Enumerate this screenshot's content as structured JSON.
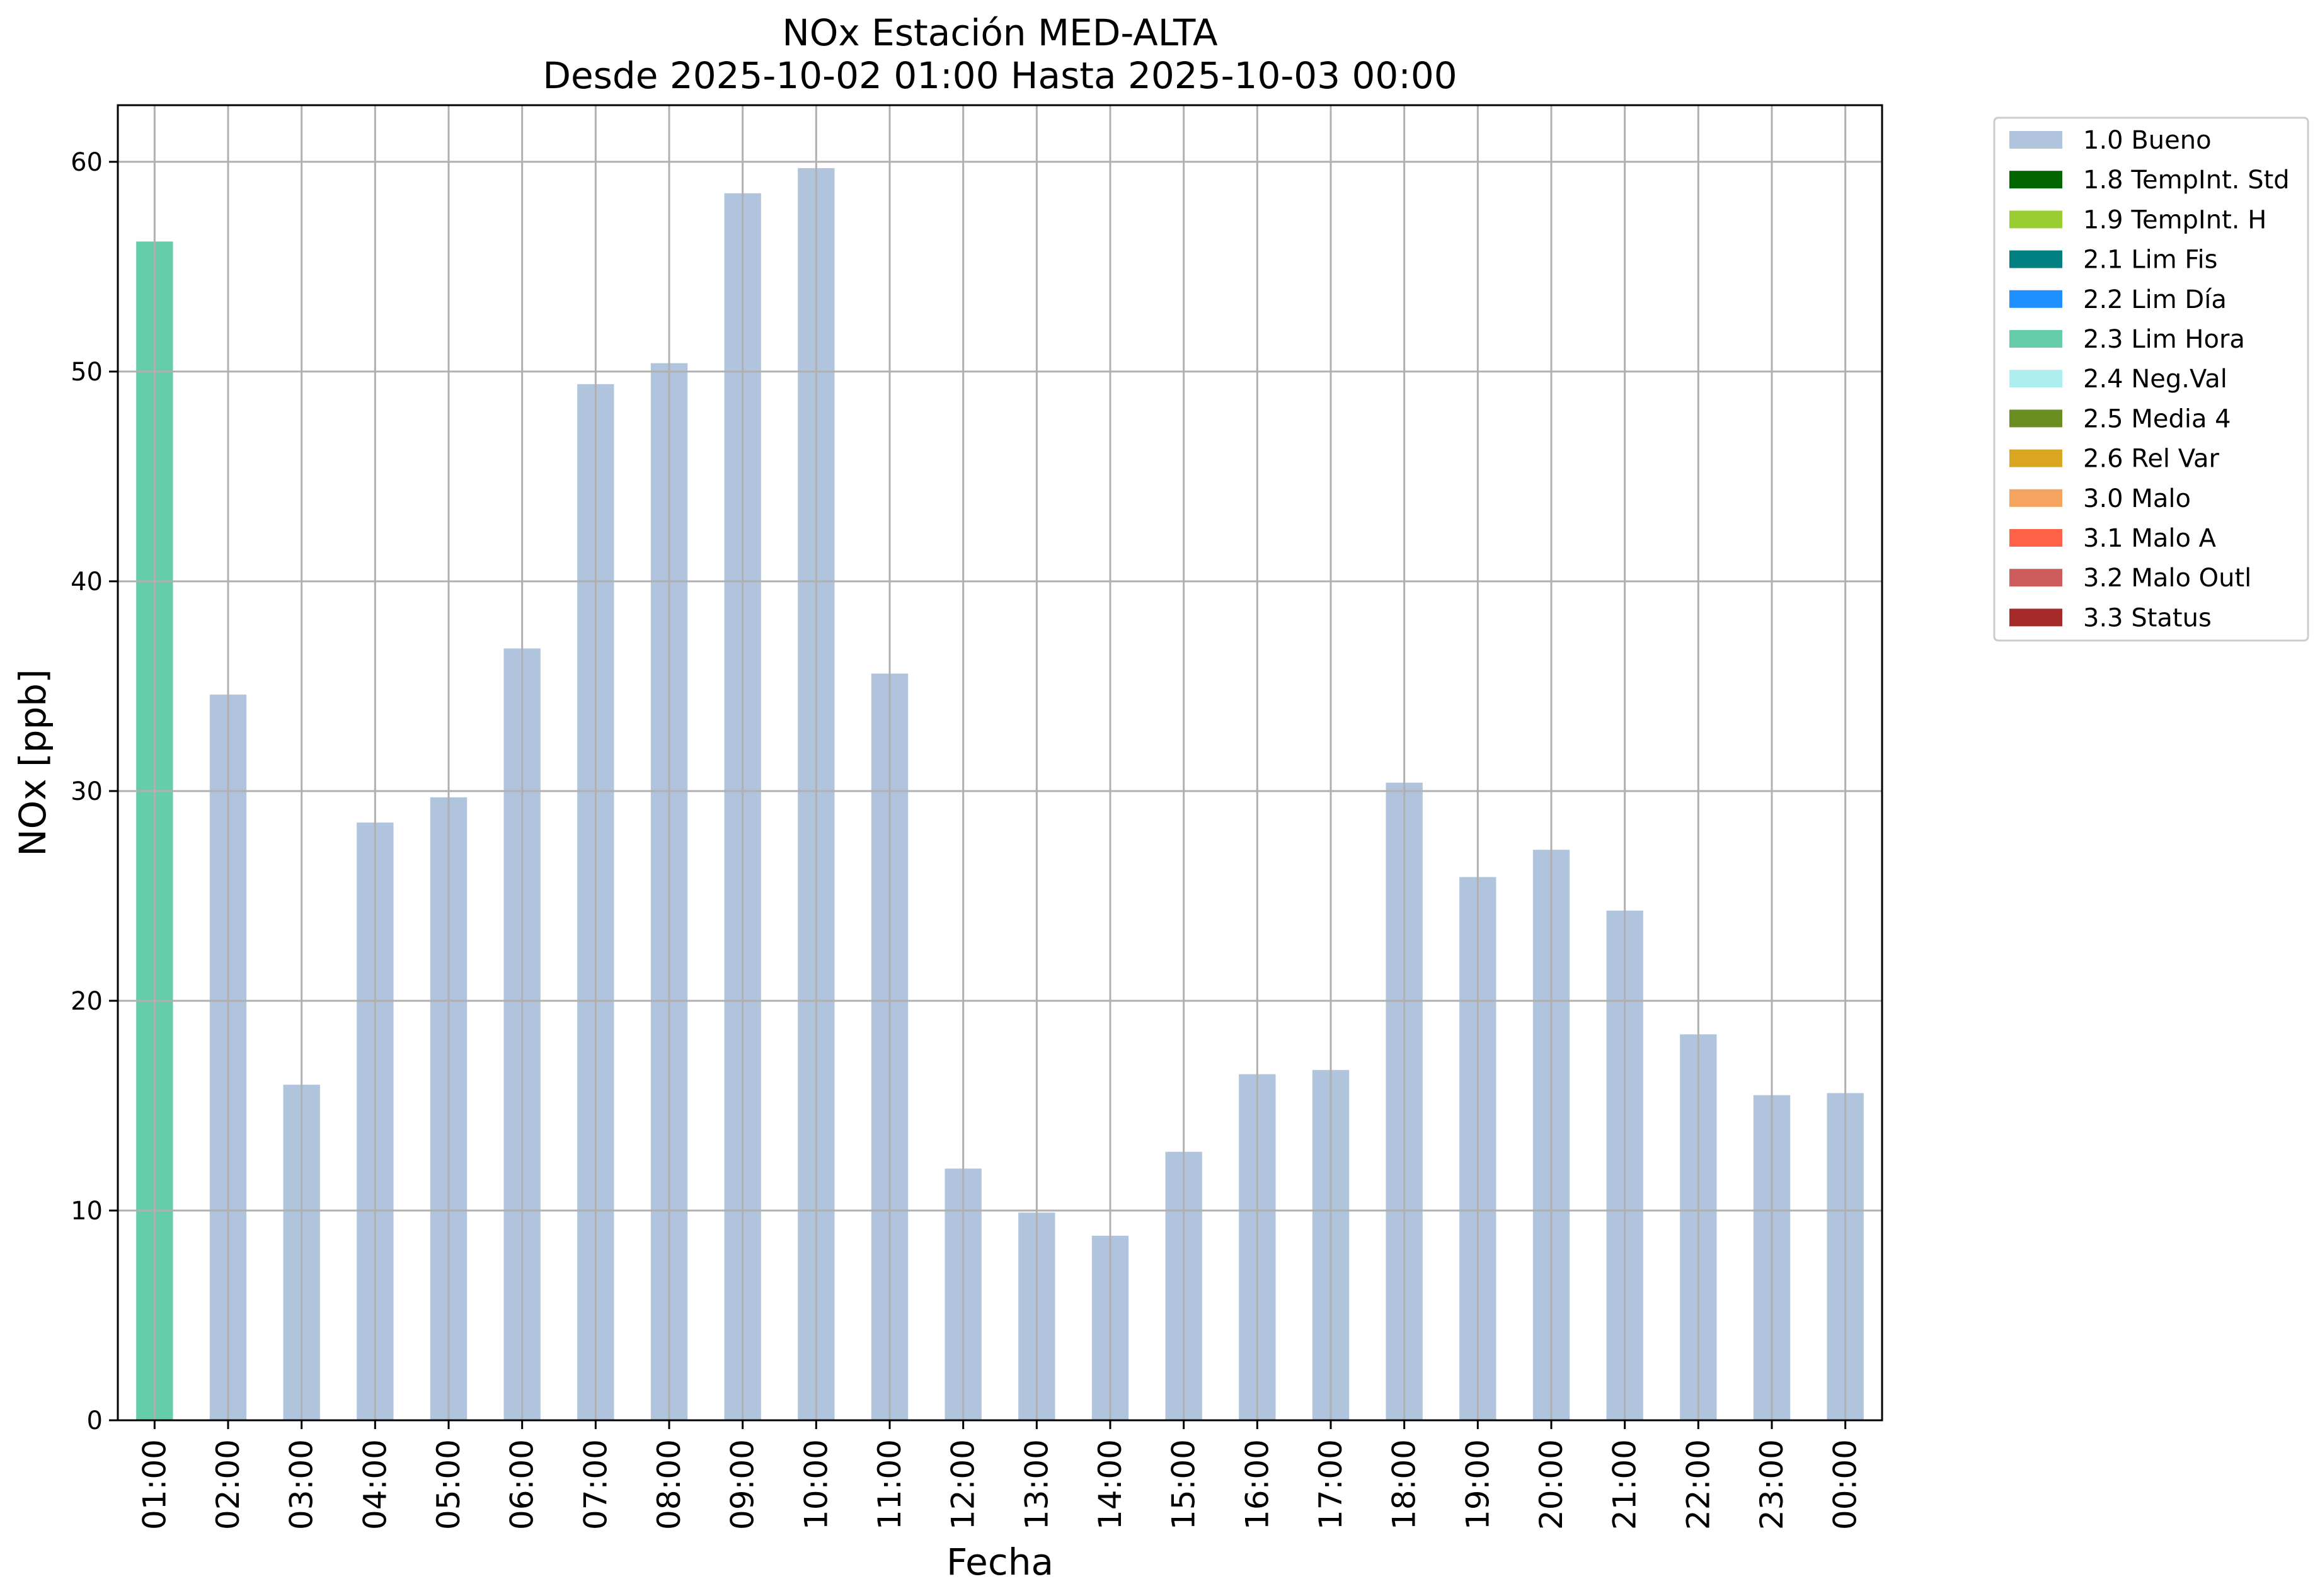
{
  "chart_data": {
    "type": "bar",
    "title": "NOx Estación MED-ALTA",
    "subtitle": "Desde 2025-10-02 01:00 Hasta 2025-10-03 00:00",
    "xlabel": "Fecha",
    "ylabel": "NOx [ppb]",
    "ylim": [
      0,
      62.7
    ],
    "yticks": [
      "0",
      "10",
      "20",
      "30",
      "40",
      "50",
      "60"
    ],
    "grid": true,
    "legend_position": "outside-top-right",
    "categories": [
      "01:00",
      "02:00",
      "03:00",
      "04:00",
      "05:00",
      "06:00",
      "07:00",
      "08:00",
      "09:00",
      "10:00",
      "11:00",
      "12:00",
      "13:00",
      "14:00",
      "15:00",
      "16:00",
      "17:00",
      "18:00",
      "19:00",
      "20:00",
      "21:00",
      "22:00",
      "23:00",
      "00:00"
    ],
    "values": [
      56.2,
      34.6,
      16.0,
      28.5,
      29.7,
      36.8,
      49.4,
      50.4,
      58.5,
      59.7,
      35.6,
      12.0,
      9.9,
      8.8,
      12.8,
      16.5,
      16.7,
      30.4,
      25.9,
      27.2,
      24.3,
      18.4,
      15.5,
      15.6
    ],
    "flags": [
      "2.3 Lim Hora",
      "1.0 Bueno",
      "1.0 Bueno",
      "1.0 Bueno",
      "1.0 Bueno",
      "1.0 Bueno",
      "1.0 Bueno",
      "1.0 Bueno",
      "1.0 Bueno",
      "1.0 Bueno",
      "1.0 Bueno",
      "1.0 Bueno",
      "1.0 Bueno",
      "1.0 Bueno",
      "1.0 Bueno",
      "1.0 Bueno",
      "1.0 Bueno",
      "1.0 Bueno",
      "1.0 Bueno",
      "1.0 Bueno",
      "1.0 Bueno",
      "1.0 Bueno",
      "1.0 Bueno",
      "1.0 Bueno"
    ],
    "legend": [
      {
        "label": "1.0 Bueno",
        "color": "#b0c4de"
      },
      {
        "label": "1.8 TempInt. Std",
        "color": "#006400"
      },
      {
        "label": "1.9 TempInt. H",
        "color": "#9acd32"
      },
      {
        "label": "2.1 Lim Fis",
        "color": "#008080"
      },
      {
        "label": "2.2 Lim Día",
        "color": "#1e90ff"
      },
      {
        "label": "2.3 Lim Hora",
        "color": "#66cdaa"
      },
      {
        "label": "2.4 Neg.Val",
        "color": "#afeeee"
      },
      {
        "label": "2.5 Media 4",
        "color": "#6b8e23"
      },
      {
        "label": "2.6 Rel Var",
        "color": "#daa520"
      },
      {
        "label": "3.0 Malo",
        "color": "#f4a460"
      },
      {
        "label": "3.1 Malo A",
        "color": "#ff6347"
      },
      {
        "label": "3.2 Malo Outl",
        "color": "#cd5c5c"
      },
      {
        "label": "3.3 Status",
        "color": "#a52a2a"
      }
    ]
  }
}
